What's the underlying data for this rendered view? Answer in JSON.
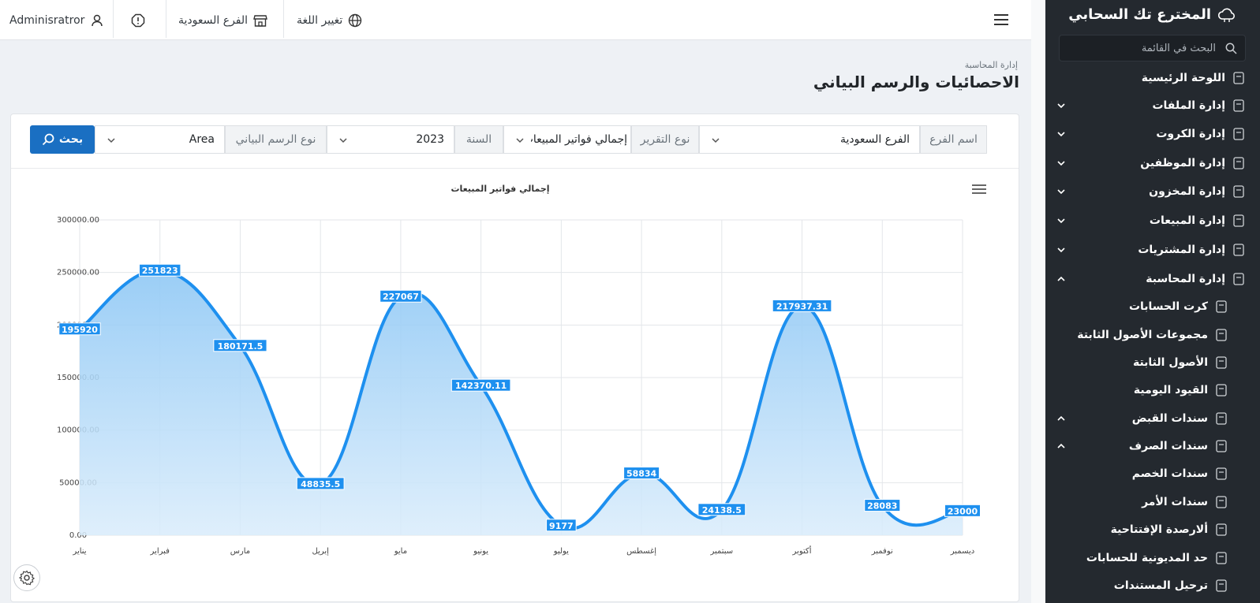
{
  "header": {
    "user_name": "Adminisratror",
    "branch_label": "الفرع السعودية",
    "language_label": "تغيير اللغة"
  },
  "page": {
    "breadcrumb": "إدارة المحاسبة",
    "title": "الاحصائيات والرسم البياني"
  },
  "filters": {
    "search_label": "بحث",
    "branch_name_label": "اسم الفرع",
    "branch_name_value": "الفرع السعودية",
    "report_type_label": "نوع التقرير",
    "report_type_value": "إجمالي فواتير المبيعات",
    "year_label": "السنة",
    "year_value": "2023",
    "chart_type_label": "نوع الرسم البياني",
    "chart_type_value": "Area"
  },
  "sidebar": {
    "brand": "المخترع تك السحابي",
    "search_placeholder": "البحث في القائمة",
    "items": [
      {
        "label": "اللوحة الرئيسية",
        "icon": "home-icon",
        "caret": ""
      },
      {
        "label": "إدارة الملفات",
        "icon": "file-icon",
        "caret": "down"
      },
      {
        "label": "إدارة الكروت",
        "icon": "card-icon",
        "caret": "down"
      },
      {
        "label": "إدارة الموظفين",
        "icon": "fingerprint-icon",
        "caret": "down"
      },
      {
        "label": "إدارة المخزون",
        "icon": "box-icon",
        "caret": "down"
      },
      {
        "label": "إدارة المبيعات",
        "icon": "cart-icon",
        "caret": "down"
      },
      {
        "label": "إدارة المشتريات",
        "icon": "basket-icon",
        "caret": "down"
      },
      {
        "label": "إدارة المحاسبة",
        "icon": "coin-icon",
        "caret": "up"
      },
      {
        "label": "كرت الحسابات",
        "icon": "sliders-icon",
        "caret": ""
      },
      {
        "label": "مجموعات الأصول الثابتة",
        "icon": "nodes-icon",
        "caret": ""
      },
      {
        "label": "الأصول الثابتة",
        "icon": "safe-icon",
        "caret": ""
      },
      {
        "label": "القيود اليومية",
        "icon": "books-icon",
        "caret": ""
      },
      {
        "label": "سندات القبض",
        "icon": "receipt-icon",
        "caret": "up"
      },
      {
        "label": "سندات الصرف",
        "icon": "receipt-out-icon",
        "caret": "up"
      },
      {
        "label": "سندات الخصم",
        "icon": "discount-icon",
        "caret": ""
      },
      {
        "label": "سندات الأمر",
        "icon": "order-doc-icon",
        "caret": ""
      },
      {
        "label": "ألارصدة الإفتتاحية",
        "icon": "balance-doc-icon",
        "caret": ""
      },
      {
        "label": "حد المديونية للحسابات",
        "icon": "limit-doc-icon",
        "caret": ""
      },
      {
        "label": "ترحيل المستندات",
        "icon": "lock-icon",
        "caret": ""
      }
    ]
  },
  "colors": {
    "accent": "#1a6fc2",
    "chart_line": "#1e90ef",
    "sidebar_bg": "#24292f"
  },
  "chart_data": {
    "type": "area",
    "title": "إجمالي فواتير المبيعات",
    "categories": [
      "يناير",
      "فبراير",
      "مارس",
      "إبريل",
      "مايو",
      "يونيو",
      "يوليو",
      "إغسطس",
      "سبتمبر",
      "أكتوبر",
      "نوفمبر",
      "ديسمبر"
    ],
    "values": [
      195920,
      251823,
      180171.5,
      48835.5,
      227067,
      142370.11,
      9177,
      58834,
      24138.5,
      217937.31,
      28083,
      23000
    ],
    "value_labels": [
      "195920",
      "251823",
      "180171.5",
      "48835.5",
      "227067",
      "142370.11",
      "9177",
      "58834",
      "24138.5",
      "217937.31",
      "28083",
      "23000"
    ],
    "yticks": [
      "0.00",
      "50000.00",
      "100000.00",
      "150000.00",
      "200000.00",
      "250000.00",
      "300000.00"
    ],
    "ylim": [
      0,
      300000
    ],
    "grid": true,
    "legend": "none"
  }
}
